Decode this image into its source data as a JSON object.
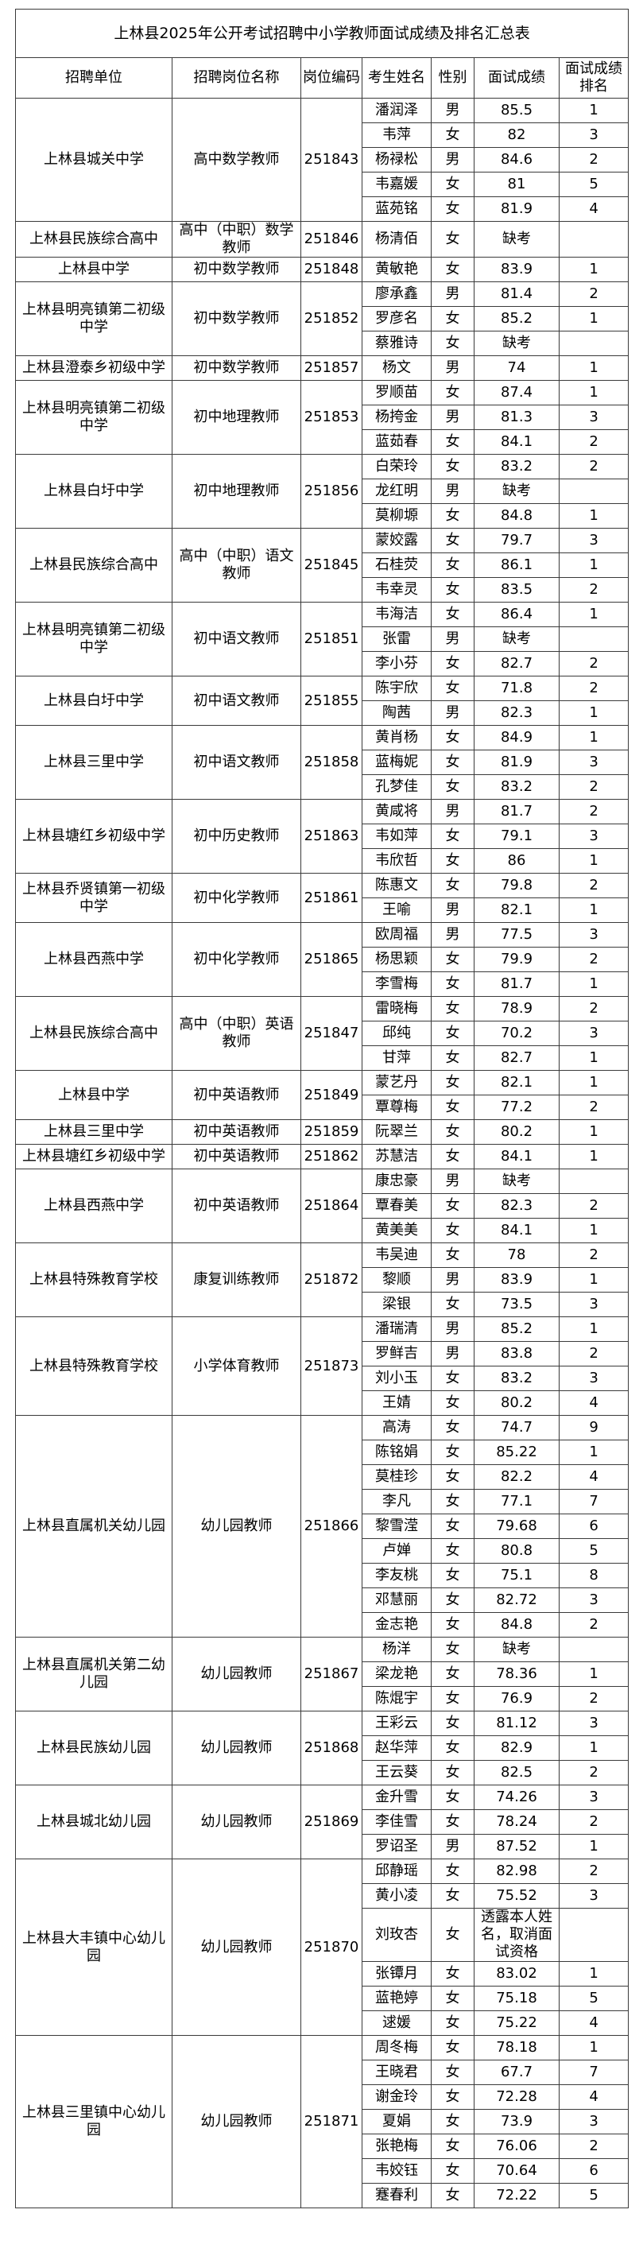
{
  "title": "上林县2025年公开考试招聘中小学教师面试成绩及排名汇总表",
  "headers": [
    "招聘单位",
    "招聘岗位名称",
    "岗位编码",
    "考生姓名",
    "性别",
    "面试成绩",
    "面试成绩排名"
  ],
  "groups": [
    {
      "unit": "上林县城关中学",
      "position": "高中数学教师",
      "code": "251843",
      "candidates": [
        {
          "name": "潘润泽",
          "gender": "男",
          "score": "85.5",
          "rank": "1"
        },
        {
          "name": "韦萍",
          "gender": "女",
          "score": "82",
          "rank": "3"
        },
        {
          "name": "杨禄松",
          "gender": "男",
          "score": "84.6",
          "rank": "2"
        },
        {
          "name": "韦嘉媛",
          "gender": "女",
          "score": "81",
          "rank": "5"
        },
        {
          "name": "蓝苑铭",
          "gender": "女",
          "score": "81.9",
          "rank": "4"
        }
      ]
    },
    {
      "unit": "上林县民族综合高中",
      "position": "高中（中职）数学教师",
      "code": "251846",
      "candidates": [
        {
          "name": "杨清佰",
          "gender": "女",
          "score": "缺考",
          "rank": ""
        }
      ]
    },
    {
      "unit": "上林县中学",
      "position": "初中数学教师",
      "code": "251848",
      "candidates": [
        {
          "name": "黄敏艳",
          "gender": "女",
          "score": "83.9",
          "rank": "1"
        }
      ]
    },
    {
      "unit": "上林县明亮镇第二初级中学",
      "position": "初中数学教师",
      "code": "251852",
      "candidates": [
        {
          "name": "廖承鑫",
          "gender": "男",
          "score": "81.4",
          "rank": "2"
        },
        {
          "name": "罗彦名",
          "gender": "女",
          "score": "85.2",
          "rank": "1"
        },
        {
          "name": "蔡雅诗",
          "gender": "女",
          "score": "缺考",
          "rank": ""
        }
      ]
    },
    {
      "unit": "上林县澄泰乡初级中学",
      "position": "初中数学教师",
      "code": "251857",
      "candidates": [
        {
          "name": "杨文",
          "gender": "男",
          "score": "74",
          "rank": "1"
        }
      ]
    },
    {
      "unit": "上林县明亮镇第二初级中学",
      "position": "初中地理教师",
      "code": "251853",
      "candidates": [
        {
          "name": "罗顺苗",
          "gender": "女",
          "score": "87.4",
          "rank": "1"
        },
        {
          "name": "杨挎金",
          "gender": "男",
          "score": "81.3",
          "rank": "3"
        },
        {
          "name": "蓝茹春",
          "gender": "女",
          "score": "84.1",
          "rank": "2"
        }
      ]
    },
    {
      "unit": "上林县白圩中学",
      "position": "初中地理教师",
      "code": "251856",
      "candidates": [
        {
          "name": "白荣玲",
          "gender": "女",
          "score": "83.2",
          "rank": "2"
        },
        {
          "name": "龙红明",
          "gender": "男",
          "score": "缺考",
          "rank": ""
        },
        {
          "name": "莫柳塬",
          "gender": "女",
          "score": "84.8",
          "rank": "1"
        }
      ]
    },
    {
      "unit": "上林县民族综合高中",
      "position": "高中（中职）语文教师",
      "code": "251845",
      "candidates": [
        {
          "name": "蒙姣露",
          "gender": "女",
          "score": "79.7",
          "rank": "3"
        },
        {
          "name": "石桂荧",
          "gender": "女",
          "score": "86.1",
          "rank": "1"
        },
        {
          "name": "韦幸灵",
          "gender": "女",
          "score": "83.5",
          "rank": "2"
        }
      ]
    },
    {
      "unit": "上林县明亮镇第二初级中学",
      "position": "初中语文教师",
      "code": "251851",
      "candidates": [
        {
          "name": "韦海洁",
          "gender": "女",
          "score": "86.4",
          "rank": "1"
        },
        {
          "name": "张雷",
          "gender": "男",
          "score": "缺考",
          "rank": ""
        },
        {
          "name": "李小芬",
          "gender": "女",
          "score": "82.7",
          "rank": "2"
        }
      ]
    },
    {
      "unit": "上林县白圩中学",
      "position": "初中语文教师",
      "code": "251855",
      "candidates": [
        {
          "name": "陈宇欣",
          "gender": "女",
          "score": "71.8",
          "rank": "2"
        },
        {
          "name": "陶茜",
          "gender": "男",
          "score": "82.3",
          "rank": "1"
        }
      ]
    },
    {
      "unit": "上林县三里中学",
      "position": "初中语文教师",
      "code": "251858",
      "candidates": [
        {
          "name": "黄肖杨",
          "gender": "女",
          "score": "84.9",
          "rank": "1"
        },
        {
          "name": "蓝梅妮",
          "gender": "女",
          "score": "81.9",
          "rank": "3"
        },
        {
          "name": "孔梦佳",
          "gender": "女",
          "score": "83.2",
          "rank": "2"
        }
      ]
    },
    {
      "unit": "上林县塘红乡初级中学",
      "position": "初中历史教师",
      "code": "251863",
      "candidates": [
        {
          "name": "黄咸将",
          "gender": "男",
          "score": "81.7",
          "rank": "2"
        },
        {
          "name": "韦如萍",
          "gender": "女",
          "score": "79.1",
          "rank": "3"
        },
        {
          "name": "韦欣哲",
          "gender": "女",
          "score": "86",
          "rank": "1"
        }
      ]
    },
    {
      "unit": "上林县乔贤镇第一初级中学",
      "position": "初中化学教师",
      "code": "251861",
      "candidates": [
        {
          "name": "陈惠文",
          "gender": "女",
          "score": "79.8",
          "rank": "2"
        },
        {
          "name": "王喻",
          "gender": "男",
          "score": "82.1",
          "rank": "1"
        }
      ]
    },
    {
      "unit": "上林县西燕中学",
      "position": "初中化学教师",
      "code": "251865",
      "candidates": [
        {
          "name": "欧周福",
          "gender": "男",
          "score": "77.5",
          "rank": "3"
        },
        {
          "name": "杨思颖",
          "gender": "女",
          "score": "79.9",
          "rank": "2"
        },
        {
          "name": "李雪梅",
          "gender": "女",
          "score": "81.7",
          "rank": "1"
        }
      ]
    },
    {
      "unit": "上林县民族综合高中",
      "position": "高中（中职）英语教师",
      "code": "251847",
      "candidates": [
        {
          "name": "雷晓梅",
          "gender": "女",
          "score": "78.9",
          "rank": "2"
        },
        {
          "name": "邱纯",
          "gender": "女",
          "score": "70.2",
          "rank": "3"
        },
        {
          "name": "甘萍",
          "gender": "女",
          "score": "82.7",
          "rank": "1"
        }
      ]
    },
    {
      "unit": "上林县中学",
      "position": "初中英语教师",
      "code": "251849",
      "candidates": [
        {
          "name": "蒙艺丹",
          "gender": "女",
          "score": "82.1",
          "rank": "1"
        },
        {
          "name": "覃尊梅",
          "gender": "女",
          "score": "77.2",
          "rank": "2"
        }
      ]
    },
    {
      "unit": "上林县三里中学",
      "position": "初中英语教师",
      "code": "251859",
      "candidates": [
        {
          "name": "阮翠兰",
          "gender": "女",
          "score": "80.2",
          "rank": "1"
        }
      ]
    },
    {
      "unit": "上林县塘红乡初级中学",
      "position": "初中英语教师",
      "code": "251862",
      "candidates": [
        {
          "name": "苏慧洁",
          "gender": "女",
          "score": "84.1",
          "rank": "1"
        }
      ]
    },
    {
      "unit": "上林县西燕中学",
      "position": "初中英语教师",
      "code": "251864",
      "candidates": [
        {
          "name": "康忠豪",
          "gender": "男",
          "score": "缺考",
          "rank": ""
        },
        {
          "name": "覃春美",
          "gender": "女",
          "score": "82.3",
          "rank": "2"
        },
        {
          "name": "黄美美",
          "gender": "女",
          "score": "84.1",
          "rank": "1"
        }
      ]
    },
    {
      "unit": "上林县特殊教育学校",
      "position": "康复训练教师",
      "code": "251872",
      "candidates": [
        {
          "name": "韦吴迪",
          "gender": "女",
          "score": "78",
          "rank": "2"
        },
        {
          "name": "黎顺",
          "gender": "男",
          "score": "83.9",
          "rank": "1"
        },
        {
          "name": "梁银",
          "gender": "女",
          "score": "73.5",
          "rank": "3"
        }
      ]
    },
    {
      "unit": "上林县特殊教育学校",
      "position": "小学体育教师",
      "code": "251873",
      "candidates": [
        {
          "name": "潘瑞清",
          "gender": "男",
          "score": "85.2",
          "rank": "1"
        },
        {
          "name": "罗鲜吉",
          "gender": "男",
          "score": "83.8",
          "rank": "2"
        },
        {
          "name": "刘小玉",
          "gender": "女",
          "score": "83.2",
          "rank": "3"
        },
        {
          "name": "王婧",
          "gender": "女",
          "score": "80.2",
          "rank": "4"
        }
      ]
    },
    {
      "unit": "上林县直属机关幼儿园",
      "position": "幼儿园教师",
      "code": "251866",
      "candidates": [
        {
          "name": "高涛",
          "gender": "女",
          "score": "74.7",
          "rank": "9"
        },
        {
          "name": "陈铭娟",
          "gender": "女",
          "score": "85.22",
          "rank": "1"
        },
        {
          "name": "莫桂珍",
          "gender": "女",
          "score": "82.2",
          "rank": "4"
        },
        {
          "name": "李凡",
          "gender": "女",
          "score": "77.1",
          "rank": "7"
        },
        {
          "name": "黎雪滢",
          "gender": "女",
          "score": "79.68",
          "rank": "6"
        },
        {
          "name": "卢婵",
          "gender": "女",
          "score": "80.8",
          "rank": "5"
        },
        {
          "name": "李友桃",
          "gender": "女",
          "score": "75.1",
          "rank": "8"
        },
        {
          "name": "邓慧丽",
          "gender": "女",
          "score": "82.72",
          "rank": "3"
        },
        {
          "name": "金志艳",
          "gender": "女",
          "score": "84.8",
          "rank": "2"
        }
      ]
    },
    {
      "unit": "上林县直属机关第二幼儿园",
      "position": "幼儿园教师",
      "code": "251867",
      "candidates": [
        {
          "name": "杨洋",
          "gender": "女",
          "score": "缺考",
          "rank": ""
        },
        {
          "name": "梁龙艳",
          "gender": "女",
          "score": "78.36",
          "rank": "1"
        },
        {
          "name": "陈焜宇",
          "gender": "女",
          "score": "76.9",
          "rank": "2"
        }
      ]
    },
    {
      "unit": "上林县民族幼儿园",
      "position": "幼儿园教师",
      "code": "251868",
      "candidates": [
        {
          "name": "王彩云",
          "gender": "女",
          "score": "81.12",
          "rank": "3"
        },
        {
          "name": "赵华萍",
          "gender": "女",
          "score": "82.9",
          "rank": "1"
        },
        {
          "name": "王云葵",
          "gender": "女",
          "score": "82.5",
          "rank": "2"
        }
      ]
    },
    {
      "unit": "上林县城北幼儿园",
      "position": "幼儿园教师",
      "code": "251869",
      "candidates": [
        {
          "name": "金升雪",
          "gender": "女",
          "score": "74.26",
          "rank": "3"
        },
        {
          "name": "李佳雪",
          "gender": "女",
          "score": "78.24",
          "rank": "2"
        },
        {
          "name": "罗诏圣",
          "gender": "男",
          "score": "87.52",
          "rank": "1"
        }
      ]
    },
    {
      "unit": "上林县大丰镇中心幼儿园",
      "position": "幼儿园教师",
      "code": "251870",
      "candidates": [
        {
          "name": "邱静瑶",
          "gender": "女",
          "score": "82.98",
          "rank": "2"
        },
        {
          "name": "黄小凌",
          "gender": "女",
          "score": "75.52",
          "rank": "3"
        },
        {
          "name": "刘玫杏",
          "gender": "女",
          "score": "透露本人姓名，取消面试资格",
          "rank": ""
        },
        {
          "name": "张镡月",
          "gender": "女",
          "score": "83.02",
          "rank": "1"
        },
        {
          "name": "蓝艳婷",
          "gender": "女",
          "score": "75.18",
          "rank": "5"
        },
        {
          "name": "逑媛",
          "gender": "女",
          "score": "75.22",
          "rank": "4"
        }
      ]
    },
    {
      "unit": "上林县三里镇中心幼儿园",
      "position": "幼儿园教师",
      "code": "251871",
      "candidates": [
        {
          "name": "周冬梅",
          "gender": "女",
          "score": "78.18",
          "rank": "1"
        },
        {
          "name": "王晓君",
          "gender": "女",
          "score": "67.7",
          "rank": "7"
        },
        {
          "name": "谢金玲",
          "gender": "女",
          "score": "72.28",
          "rank": "4"
        },
        {
          "name": "夏娟",
          "gender": "女",
          "score": "73.9",
          "rank": "3"
        },
        {
          "name": "张艳梅",
          "gender": "女",
          "score": "76.06",
          "rank": "2"
        },
        {
          "name": "韦姣钰",
          "gender": "女",
          "score": "70.64",
          "rank": "6"
        },
        {
          "name": "蹇春利",
          "gender": "女",
          "score": "72.22",
          "rank": "5"
        }
      ]
    }
  ]
}
